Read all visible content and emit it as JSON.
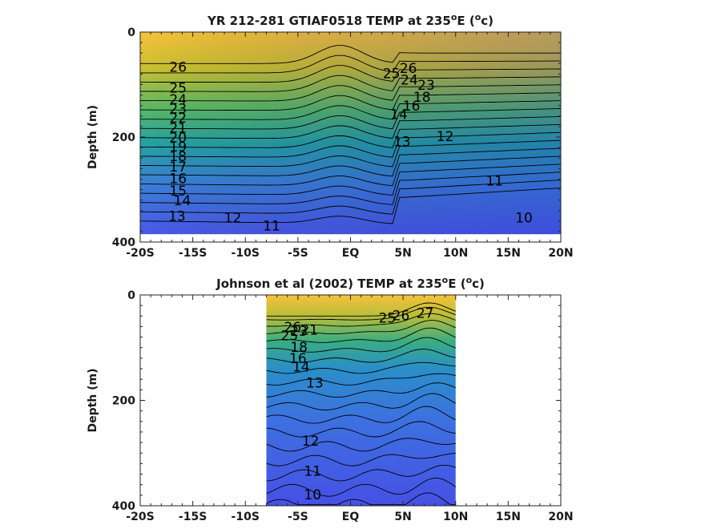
{
  "chart_data": [
    {
      "type": "heatmap",
      "title_main": "YR 212-281 GTIAF0518 TEMP at 235",
      "title_sup": "o",
      "title_tail": "E (",
      "title_unit_sup": "o",
      "title_unit": "c)",
      "ylabel": "Depth (m)",
      "xlabel": "",
      "xlim": [
        -20,
        20
      ],
      "ylim": [
        400,
        0
      ],
      "xticks": [
        -20,
        -15,
        -10,
        -5,
        0,
        5,
        10,
        15,
        20
      ],
      "xtick_labels": [
        "-20S",
        "-15S",
        "-10S",
        "-5S",
        "EQ",
        "5N",
        "10N",
        "15N",
        "20N"
      ],
      "yticks": [
        0,
        200,
        400
      ],
      "ytick_labels": [
        "0",
        "200",
        "400"
      ],
      "data_extent_x": [
        -20,
        20
      ],
      "data_extent_y": [
        0,
        385
      ],
      "contour_labels": [
        {
          "text": "26",
          "x": -16.4,
          "y": 68
        },
        {
          "text": "25",
          "x": -16.4,
          "y": 108
        },
        {
          "text": "24",
          "x": -16.4,
          "y": 130
        },
        {
          "text": "23",
          "x": -16.4,
          "y": 147
        },
        {
          "text": "22",
          "x": -16.4,
          "y": 165
        },
        {
          "text": "21",
          "x": -16.4,
          "y": 184
        },
        {
          "text": "20",
          "x": -16.4,
          "y": 202
        },
        {
          "text": "19",
          "x": -16.4,
          "y": 220
        },
        {
          "text": "18",
          "x": -16.4,
          "y": 238
        },
        {
          "text": "17",
          "x": -16.4,
          "y": 258
        },
        {
          "text": "16",
          "x": -16.4,
          "y": 280
        },
        {
          "text": "15",
          "x": -16.4,
          "y": 304
        },
        {
          "text": "14",
          "x": -16.0,
          "y": 322
        },
        {
          "text": "13",
          "x": -16.5,
          "y": 352
        },
        {
          "text": "12",
          "x": -11.2,
          "y": 355
        },
        {
          "text": "11",
          "x": -7.5,
          "y": 370
        },
        {
          "text": "26",
          "x": 5.5,
          "y": 70
        },
        {
          "text": "25",
          "x": 3.9,
          "y": 80
        },
        {
          "text": "24",
          "x": 5.6,
          "y": 92
        },
        {
          "text": "23",
          "x": 7.2,
          "y": 102
        },
        {
          "text": "18",
          "x": 6.8,
          "y": 125
        },
        {
          "text": "16",
          "x": 5.8,
          "y": 142
        },
        {
          "text": "14",
          "x": 4.6,
          "y": 158
        },
        {
          "text": "13",
          "x": 4.9,
          "y": 210
        },
        {
          "text": "12",
          "x": 9.0,
          "y": 200
        },
        {
          "text": "11",
          "x": 13.7,
          "y": 285
        },
        {
          "text": "10",
          "x": 16.5,
          "y": 355
        }
      ]
    },
    {
      "type": "heatmap",
      "title_main": "Johnson et al (2002) TEMP at 235",
      "title_sup": "o",
      "title_tail": "E (",
      "title_unit_sup": "o",
      "title_unit": "c)",
      "ylabel": "Depth (m)",
      "xlabel": "",
      "xlim": [
        -20,
        20
      ],
      "ylim": [
        400,
        0
      ],
      "xticks": [
        -20,
        -15,
        -10,
        -5,
        0,
        5,
        10,
        15,
        20
      ],
      "xtick_labels": [
        "-20S",
        "-15S",
        "-10S",
        "-5S",
        "EQ",
        "5N",
        "10N",
        "15N",
        "20N"
      ],
      "yticks": [
        0,
        200,
        400
      ],
      "ytick_labels": [
        "0",
        "200",
        "400"
      ],
      "data_extent_x": [
        -8,
        10
      ],
      "data_extent_y": [
        0,
        400
      ],
      "contour_labels": [
        {
          "text": "26",
          "x": -5.5,
          "y": 62
        },
        {
          "text": "25",
          "x": -5.8,
          "y": 78
        },
        {
          "text": "23",
          "x": -4.9,
          "y": 70
        },
        {
          "text": "21",
          "x": -3.9,
          "y": 68
        },
        {
          "text": "18",
          "x": -4.9,
          "y": 100
        },
        {
          "text": "16",
          "x": -5.0,
          "y": 122
        },
        {
          "text": "14",
          "x": -4.7,
          "y": 138
        },
        {
          "text": "13",
          "x": -3.4,
          "y": 168
        },
        {
          "text": "25",
          "x": 3.5,
          "y": 45
        },
        {
          "text": "26",
          "x": 4.8,
          "y": 40
        },
        {
          "text": "27",
          "x": 7.1,
          "y": 36
        },
        {
          "text": "12",
          "x": -3.8,
          "y": 278
        },
        {
          "text": "11",
          "x": -3.6,
          "y": 335
        },
        {
          "text": "10",
          "x": -3.6,
          "y": 380
        }
      ]
    }
  ]
}
